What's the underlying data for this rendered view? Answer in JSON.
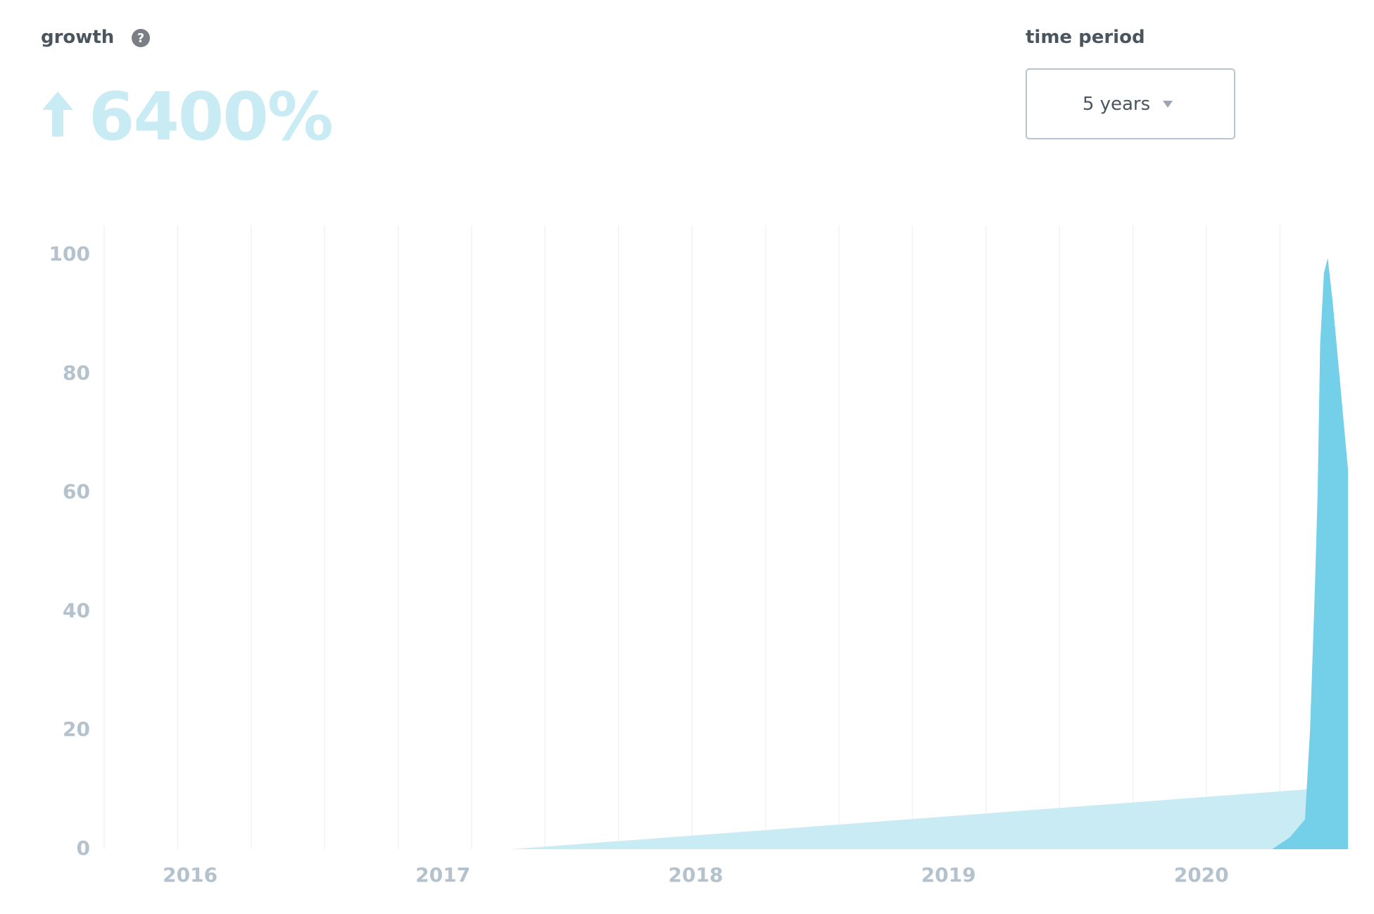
{
  "header": {
    "growth_label": "growth",
    "growth_value": "6400%",
    "period_label": "time period",
    "period_value": "5 years"
  },
  "chart_data": {
    "type": "area",
    "series": [
      {
        "color": "#c8ebf4",
        "x": [
          2017.27,
          2020.58
        ],
        "values": [
          0,
          10.6
        ]
      },
      {
        "color": "#74cfe8",
        "x": [
          2020.28,
          2020.35,
          2020.41,
          2020.43,
          2020.45,
          2020.46,
          2020.47,
          2020.485,
          2020.5,
          2020.52,
          2020.55,
          2020.58
        ],
        "values": [
          0,
          2,
          5,
          20,
          45,
          60,
          85,
          97,
          99.5,
          92,
          78,
          64
        ]
      }
    ],
    "xlim": [
      2015.66,
      2020.58
    ],
    "xticks": [
      2016,
      2017,
      2018,
      2019,
      2020
    ],
    "ylim": [
      0,
      105
    ],
    "yticks": [
      0,
      20,
      40,
      60,
      80,
      100
    ]
  }
}
